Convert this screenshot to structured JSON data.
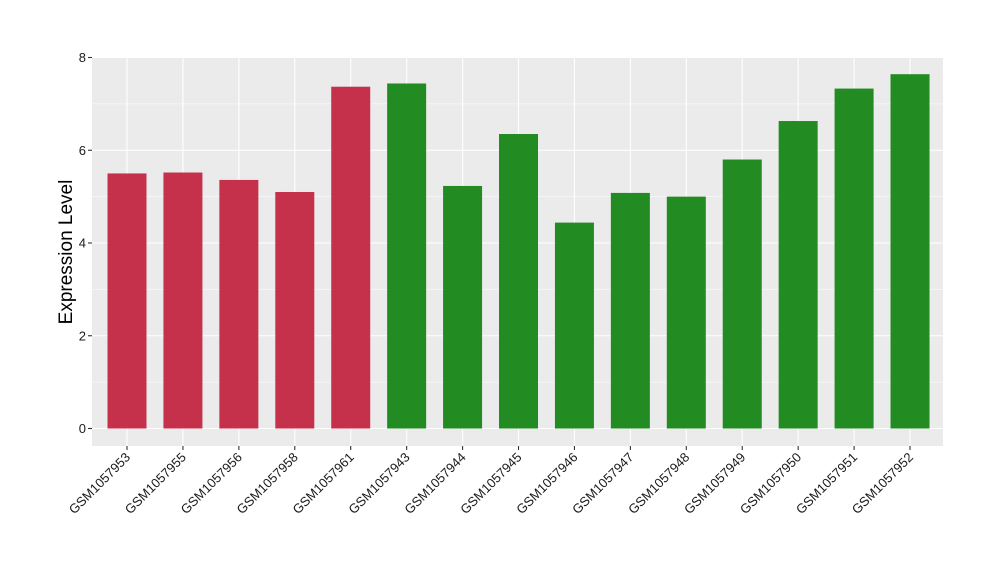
{
  "chart_data": {
    "type": "bar",
    "title": "",
    "xlabel": "",
    "ylabel": "Expression Level",
    "ylim": [
      0,
      8
    ],
    "yticks": [
      0,
      2,
      4,
      6,
      8
    ],
    "grid": true,
    "legend": "none",
    "categories": [
      "GSM1057953",
      "GSM1057955",
      "GSM1057956",
      "GSM1057958",
      "GSM1057961",
      "GSM1057943",
      "GSM1057944",
      "GSM1057945",
      "GSM1057946",
      "GSM1057947",
      "GSM1057948",
      "GSM1057949",
      "GSM1057950",
      "GSM1057951",
      "GSM1057952"
    ],
    "values": [
      5.5,
      5.52,
      5.36,
      5.1,
      7.37,
      7.44,
      5.23,
      6.35,
      4.44,
      5.08,
      5.0,
      5.8,
      6.63,
      7.33,
      7.64
    ],
    "bar_colors": [
      "#c5314b",
      "#c5314b",
      "#c5314b",
      "#c5314b",
      "#c5314b",
      "#228b22",
      "#228b22",
      "#228b22",
      "#228b22",
      "#228b22",
      "#228b22",
      "#228b22",
      "#228b22",
      "#228b22",
      "#228b22"
    ],
    "panel_background": "#ebebeb",
    "grid_color": "#ffffff"
  }
}
